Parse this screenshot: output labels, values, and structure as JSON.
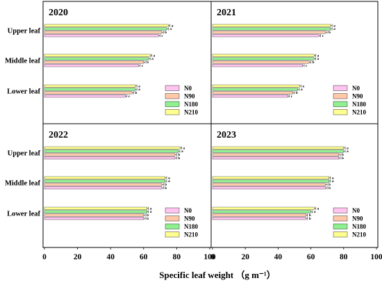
{
  "chart_data": {
    "type": "bar",
    "orientation": "horizontal",
    "xlabel": "Specific leaf weight （g m⁻¹）",
    "xlim": [
      0,
      100
    ],
    "xticks": [
      "0",
      "20",
      "40",
      "60",
      "80",
      "100"
    ],
    "categories": [
      "Upper leaf",
      "Middle leaf",
      "Lower leaf"
    ],
    "series_names": [
      "N0",
      "N90",
      "N180",
      "N210"
    ],
    "colors": {
      "N0": "#ffc4f0",
      "N90": "#ffc8a8",
      "N180": "#8ff08f",
      "N210": "#ffff90"
    },
    "legend_position": "right",
    "panels": [
      {
        "title": "2020",
        "values": {
          "Upper leaf": {
            "N0": 69,
            "N90": 71,
            "N180": 74,
            "N210": 75
          },
          "Middle leaf": {
            "N0": 57,
            "N90": 60,
            "N180": 63,
            "N210": 64
          },
          "Lower leaf": {
            "N0": 49,
            "N90": 53,
            "N180": 55,
            "N210": 55
          }
        },
        "labels": {
          "Upper leaf": {
            "N0": "c",
            "N90": "b",
            "N180": "a",
            "N210": "a"
          },
          "Middle leaf": {
            "N0": "c",
            "N90": "b",
            "N180": "a",
            "N210": "a"
          },
          "Lower leaf": {
            "N0": "c",
            "N90": "b",
            "N180": "a",
            "N210": "a"
          }
        }
      },
      {
        "title": "2021",
        "values": {
          "Upper leaf": {
            "N0": 65,
            "N90": 69,
            "N180": 72,
            "N210": 72
          },
          "Middle leaf": {
            "N0": 55,
            "N90": 59,
            "N180": 62,
            "N210": 62
          },
          "Lower leaf": {
            "N0": 46,
            "N90": 49,
            "N180": 52,
            "N210": 53
          }
        },
        "labels": {
          "Upper leaf": {
            "N0": "c",
            "N90": "b",
            "N180": "a",
            "N210": "a"
          },
          "Middle leaf": {
            "N0": "c",
            "N90": "b",
            "N180": "a",
            "N210": "a"
          },
          "Lower leaf": {
            "N0": "c",
            "N90": "b",
            "N180": "a",
            "N210": "a"
          }
        }
      },
      {
        "title": "2022",
        "values": {
          "Upper leaf": {
            "N0": 79,
            "N90": 79,
            "N180": 81,
            "N210": 82
          },
          "Middle leaf": {
            "N0": 71,
            "N90": 71,
            "N180": 73,
            "N210": 73
          },
          "Lower leaf": {
            "N0": 60,
            "N90": 60,
            "N180": 62,
            "N210": 62
          }
        },
        "labels": {
          "Upper leaf": {
            "N0": "b",
            "N90": "b",
            "N180": "a",
            "N210": "a"
          },
          "Middle leaf": {
            "N0": "b",
            "N90": "b",
            "N180": "a",
            "N210": "a"
          },
          "Lower leaf": {
            "N0": "b",
            "N90": "b",
            "N180": "a",
            "N210": "a"
          }
        }
      },
      {
        "title": "2023",
        "values": {
          "Upper leaf": {
            "N0": 77,
            "N90": 77,
            "N180": 80,
            "N210": 80
          },
          "Middle leaf": {
            "N0": 69,
            "N90": 69,
            "N180": 71,
            "N210": 71
          },
          "Lower leaf": {
            "N0": 57,
            "N90": 57,
            "N180": 60,
            "N210": 62
          }
        },
        "labels": {
          "Upper leaf": {
            "N0": "b",
            "N90": "b",
            "N180": "a",
            "N210": "a"
          },
          "Middle leaf": {
            "N0": "b",
            "N90": "b",
            "N180": "a",
            "N210": "a"
          },
          "Lower leaf": {
            "N0": "b",
            "N90": "b",
            "N180": "a",
            "N210": "a"
          }
        }
      }
    ]
  }
}
